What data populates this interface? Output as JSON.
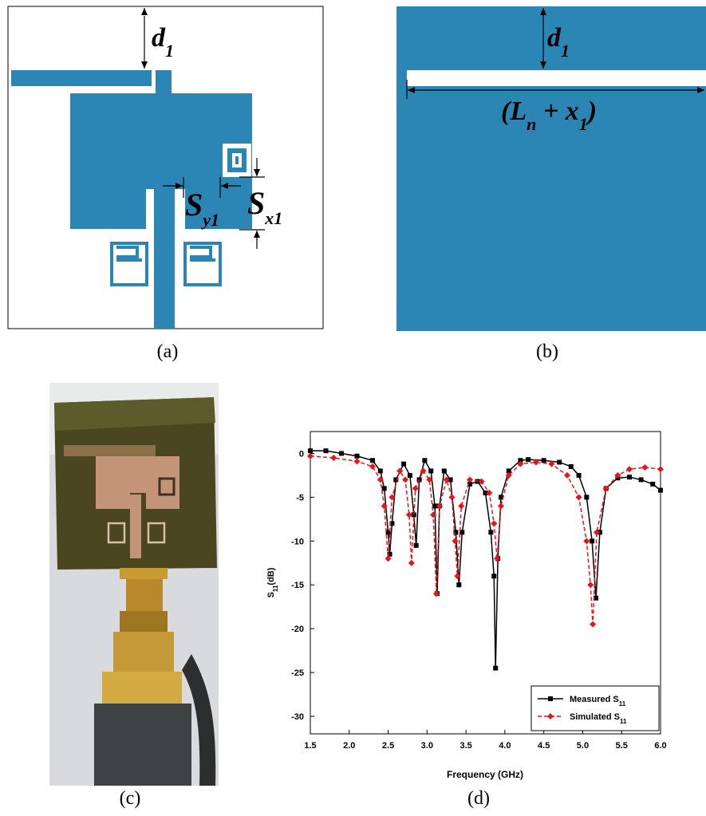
{
  "figure": {
    "panel_a": {
      "label": "(a)",
      "d1": {
        "text": "d",
        "sub": "1"
      },
      "sy1": {
        "text": "S",
        "sub": "y1"
      },
      "sx1": {
        "text": "S",
        "sub": "x1"
      }
    },
    "panel_b": {
      "label": "(b)",
      "d1": {
        "text": "d",
        "sub": "1"
      },
      "length": [
        {
          "text": "(L",
          "sub": "n"
        },
        {
          "text": " + x",
          "sub": "1"
        },
        {
          "text": ")"
        }
      ]
    },
    "panel_c": {
      "label": "(c)"
    },
    "panel_d": {
      "label": "(d)"
    }
  },
  "chart_data": {
    "type": "line",
    "xlabel": "Frequency (GHz)",
    "ylabel": {
      "text": "S",
      "sub": "11",
      "after": "(dB)"
    },
    "xlim": [
      1.5,
      6.0
    ],
    "ylim": [
      -32,
      2.5
    ],
    "xticks": [
      1.5,
      {
        "value": 2,
        "label": "2.0"
      },
      2.5,
      {
        "value": 3,
        "label": "3.0"
      },
      3.5,
      {
        "value": 4,
        "label": "4.0"
      },
      4.5,
      {
        "value": 5,
        "label": "5.0"
      },
      5.5,
      {
        "value": 6,
        "label": "6.0"
      }
    ],
    "yticks": [
      0,
      -5,
      -10,
      -15,
      -20,
      -25,
      -30
    ],
    "legend": "lower right",
    "series": [
      {
        "name": "Measured S",
        "name_sub": "11",
        "color": "#000000",
        "linestyle": "solid",
        "marker": "square",
        "x": [
          1.5,
          1.7,
          1.9,
          2.1,
          2.3,
          2.4,
          2.45,
          2.5,
          2.52,
          2.55,
          2.6,
          2.7,
          2.78,
          2.83,
          2.86,
          2.9,
          2.97,
          3.05,
          3.1,
          3.13,
          3.16,
          3.22,
          3.3,
          3.37,
          3.41,
          3.45,
          3.55,
          3.65,
          3.75,
          3.82,
          3.86,
          3.88,
          3.91,
          3.95,
          4.05,
          4.2,
          4.3,
          4.5,
          4.7,
          4.85,
          4.95,
          5.05,
          5.12,
          5.17,
          5.22,
          5.3,
          5.45,
          5.6,
          5.75,
          5.9,
          6.0
        ],
        "values": [
          0.3,
          0.3,
          0,
          -0.3,
          -0.8,
          -2,
          -4,
          -9,
          -11.5,
          -8,
          -3,
          -1.2,
          -2.5,
          -7,
          -10.5,
          -3,
          -0.8,
          -2,
          -6,
          -16,
          -6,
          -2,
          -3,
          -9,
          -15,
          -9,
          -3.5,
          -3.2,
          -4.5,
          -9,
          -14,
          -24.5,
          -12,
          -5,
          -2,
          -0.8,
          -0.7,
          -0.8,
          -1,
          -1.5,
          -2.5,
          -5,
          -10,
          -16.5,
          -9,
          -4,
          -2.8,
          -2.7,
          -3,
          -3.5,
          -4.2
        ]
      },
      {
        "name": "Simulated S",
        "name_sub": "11",
        "color": "#e8141c",
        "linestyle": "dashed",
        "marker": "diamond",
        "x": [
          1.5,
          1.8,
          2.1,
          2.3,
          2.4,
          2.45,
          2.5,
          2.55,
          2.65,
          2.72,
          2.77,
          2.8,
          2.85,
          2.95,
          3.03,
          3.08,
          3.12,
          3.16,
          3.25,
          3.32,
          3.36,
          3.39,
          3.44,
          3.55,
          3.7,
          3.8,
          3.86,
          3.9,
          3.95,
          4.05,
          4.2,
          4.4,
          4.6,
          4.8,
          4.95,
          5.05,
          5.1,
          5.13,
          5.18,
          5.3,
          5.45,
          5.6,
          5.8,
          6.0
        ],
        "values": [
          -0.3,
          -0.5,
          -0.9,
          -1.5,
          -3,
          -6,
          -12,
          -5,
          -2,
          -3,
          -7,
          -12.5,
          -4,
          -2,
          -3,
          -7,
          -16,
          -6,
          -3,
          -5,
          -10,
          -14,
          -6,
          -3,
          -3.2,
          -4.5,
          -8,
          -12,
          -6,
          -2.5,
          -1.2,
          -1,
          -1.2,
          -2.5,
          -5,
          -10,
          -15,
          -19.5,
          -9,
          -4,
          -2.5,
          -1.8,
          -1.6,
          -1.8
        ]
      }
    ]
  }
}
